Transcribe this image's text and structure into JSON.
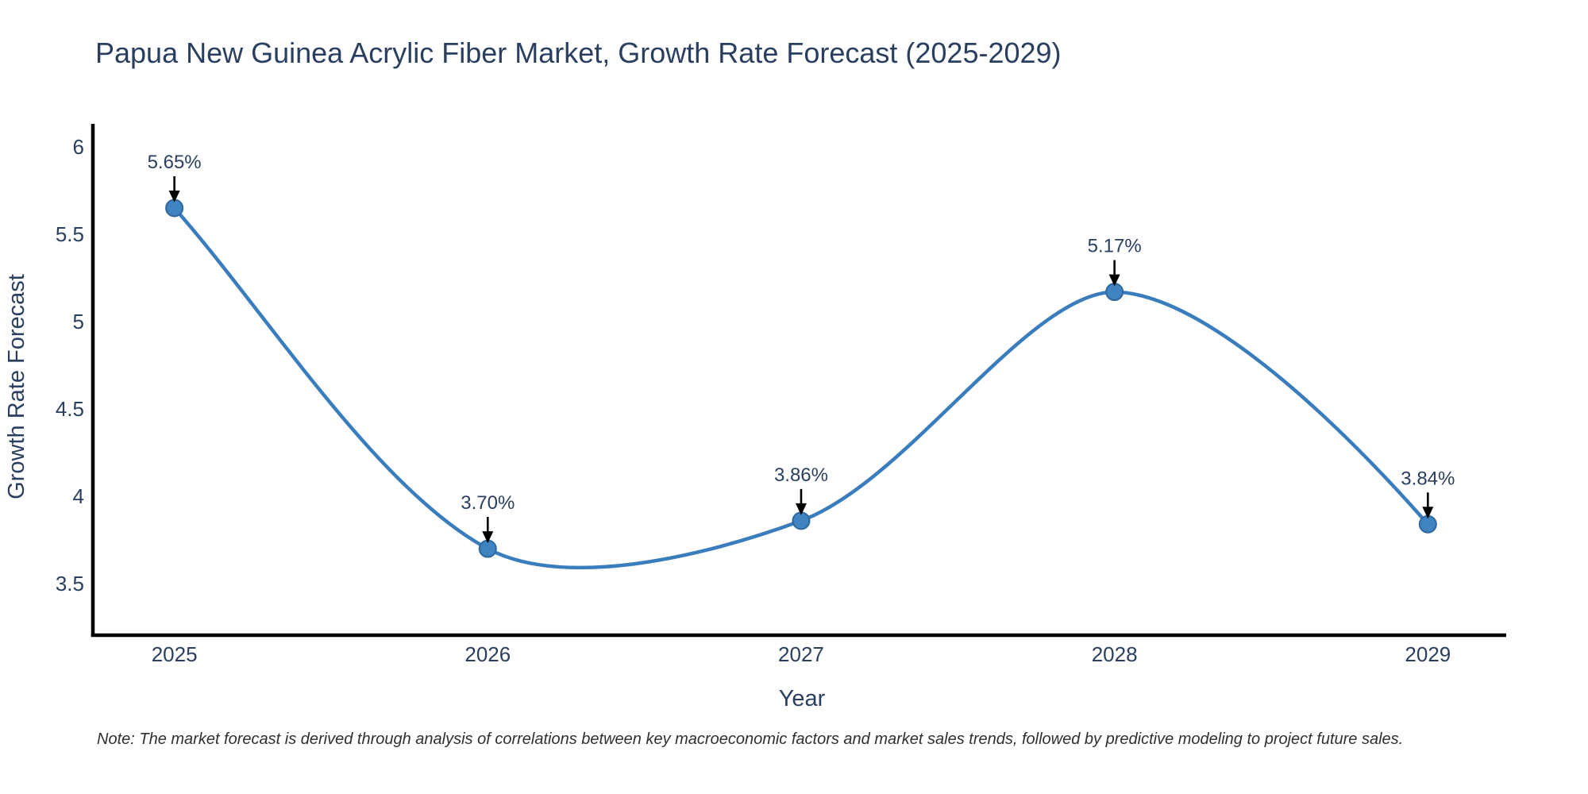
{
  "title": "Papua New Guinea Acrylic Fiber Market, Growth Rate Forecast (2025-2029)",
  "note": "Note: The market forecast is derived through analysis of correlations between key macroeconomic factors and market sales trends, followed by predictive modeling to project future sales.",
  "chart_data": {
    "type": "line",
    "title": "Papua New Guinea Acrylic Fiber Market, Growth Rate Forecast (2025-2029)",
    "xlabel": "Year",
    "ylabel": "Growth Rate Forecast",
    "categories": [
      2025,
      2026,
      2027,
      2028,
      2029
    ],
    "values": [
      5.65,
      3.7,
      3.86,
      5.17,
      3.84
    ],
    "point_labels": [
      "5.65%",
      "3.70%",
      "3.86%",
      "5.17%",
      "3.84%"
    ],
    "series_name": "Growth Rate Forecast",
    "xtick_labels": [
      "2025",
      "2026",
      "2027",
      "2028",
      "2029"
    ],
    "ytick_labels": [
      "3.5",
      "4",
      "4.5",
      "5",
      "5.5",
      "6"
    ],
    "yticks": [
      3.5,
      4,
      4.5,
      5,
      5.5,
      6
    ],
    "ylim": [
      3.205,
      6.136
    ],
    "xlim": [
      2024.74,
      2029.25
    ],
    "grid": false,
    "legend_position": "none",
    "line_smoothing": "cubic-spline",
    "annotation_style": "value-label-with-down-arrow",
    "colors": {
      "line": "#3a7dbd",
      "marker_fill": "#3f84c1",
      "marker_edge": "#2e689d",
      "annotation_arrow": "#000000",
      "heading_text": "#2a3f5f",
      "tick_text": "#2a3f5f",
      "annotation_text": "#2a3f5f",
      "axis_line": "#000000",
      "note_text": "#2f2f2f",
      "background": "#ffffff"
    }
  }
}
